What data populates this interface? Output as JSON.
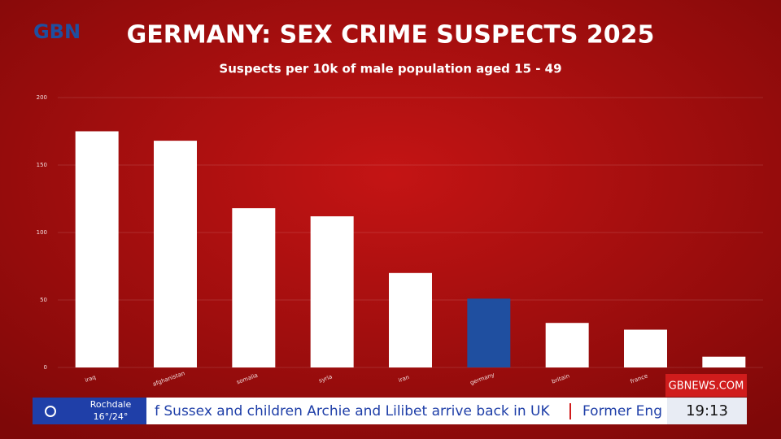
{
  "logo": "GBN",
  "chart_data": {
    "type": "bar",
    "title": "GERMANY: SEX CRIME SUSPECTS 2025",
    "subtitle": "Suspects per 10k of male population aged 15 - 49",
    "categories": [
      "iraq",
      "afghanistan",
      "somalia",
      "syria",
      "iran",
      "germany",
      "britain",
      "france",
      null
    ],
    "values": [
      175,
      168,
      118,
      112,
      70,
      51,
      33,
      28,
      8
    ],
    "colors": [
      "#ffffff",
      "#ffffff",
      "#ffffff",
      "#ffffff",
      "#ffffff",
      "#1f4fa0",
      "#ffffff",
      "#ffffff",
      "#ffffff"
    ],
    "ylim": [
      0,
      200
    ],
    "yticks": [
      0,
      50,
      100,
      150,
      200
    ],
    "grid": true
  },
  "ticker": {
    "location": "Rochdale",
    "temperature": "16°/24°",
    "headline": "f Sussex and children Archie and Lilibet arrive back in UK",
    "next": "Former Eng",
    "site": "GBNEWS.COM",
    "time": "19:13"
  }
}
